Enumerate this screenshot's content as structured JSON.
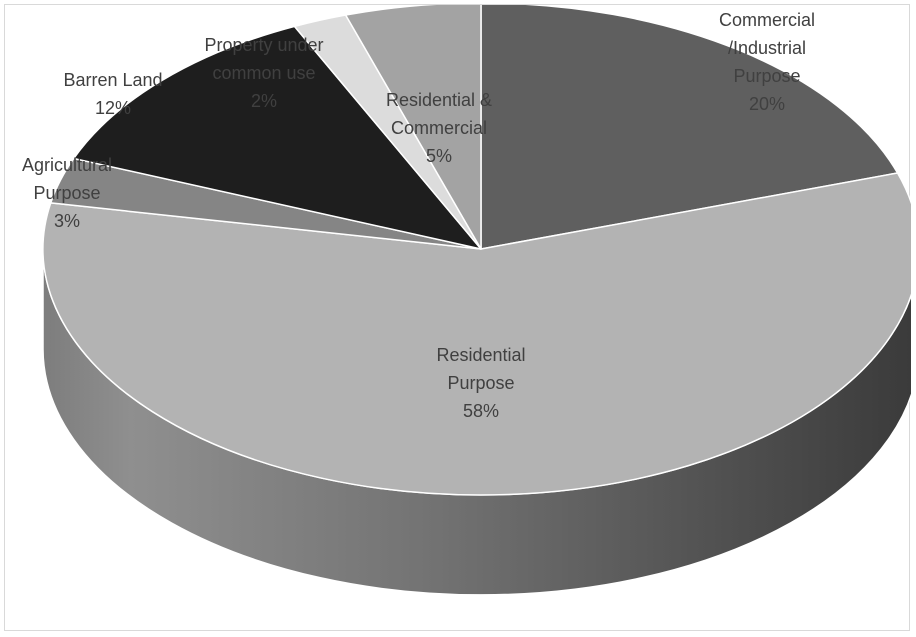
{
  "chart_data": {
    "type": "pie",
    "style": "3d",
    "title": "",
    "legend": "none",
    "start_angle_deg": 90,
    "direction": "clockwise",
    "slices": [
      {
        "label_lines": [
          "Commercial",
          "/Industrial",
          "Purpose",
          "20%"
        ],
        "name": "Commercial /Industrial Purpose",
        "value": 20,
        "color": "#5f5f5f"
      },
      {
        "label_lines": [
          "Residential",
          "Purpose",
          "58%"
        ],
        "name": "Residential Purpose",
        "value": 58,
        "color": "#b3b3b3"
      },
      {
        "label_lines": [
          "Agricultural",
          "Purpose",
          "3%"
        ],
        "name": "Agricultural Purpose",
        "value": 3,
        "color": "#858585"
      },
      {
        "label_lines": [
          "Barren Land",
          "12%"
        ],
        "name": "Barren Land",
        "value": 12,
        "color": "#1e1e1e"
      },
      {
        "label_lines": [
          "Property under",
          "common use",
          "2%"
        ],
        "name": "Property under common use",
        "value": 2,
        "color": "#dcdcdc"
      },
      {
        "label_lines": [
          "Residential &",
          "Commercial",
          "5%"
        ],
        "name": "Residential & Commercial",
        "value": 5,
        "color": "#a3a3a3"
      }
    ]
  }
}
